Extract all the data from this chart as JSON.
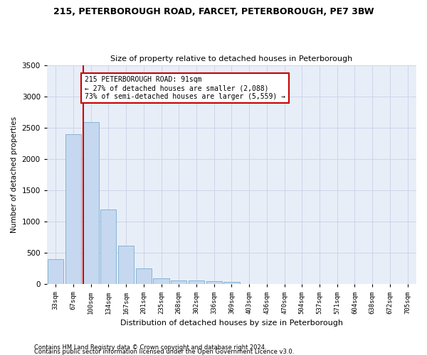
{
  "title_line1": "215, PETERBOROUGH ROAD, FARCET, PETERBOROUGH, PE7 3BW",
  "title_line2": "Size of property relative to detached houses in Peterborough",
  "xlabel": "Distribution of detached houses by size in Peterborough",
  "ylabel": "Number of detached properties",
  "footnote1": "Contains HM Land Registry data © Crown copyright and database right 2024.",
  "footnote2": "Contains public sector information licensed under the Open Government Licence v3.0.",
  "bar_labels": [
    "33sqm",
    "67sqm",
    "100sqm",
    "134sqm",
    "167sqm",
    "201sqm",
    "235sqm",
    "268sqm",
    "302sqm",
    "336sqm",
    "369sqm",
    "403sqm",
    "436sqm",
    "470sqm",
    "504sqm",
    "537sqm",
    "571sqm",
    "604sqm",
    "638sqm",
    "672sqm",
    "705sqm"
  ],
  "bar_values": [
    400,
    2390,
    2590,
    1200,
    620,
    250,
    100,
    65,
    58,
    50,
    40,
    0,
    0,
    0,
    0,
    0,
    0,
    0,
    0,
    0,
    0
  ],
  "bar_color": "#c5d8f0",
  "bar_edge_color": "#7aadce",
  "red_line_bar_index": 2,
  "annotation_text": "215 PETERBOROUGH ROAD: 91sqm\n← 27% of detached houses are smaller (2,088)\n73% of semi-detached houses are larger (5,559) →",
  "annotation_box_color": "#ffffff",
  "annotation_box_edge": "#cc0000",
  "red_line_color": "#cc0000",
  "grid_color": "#ccd5e8",
  "background_color": "#e8eef8",
  "ylim": [
    0,
    3500
  ],
  "yticks": [
    0,
    500,
    1000,
    1500,
    2000,
    2500,
    3000,
    3500
  ]
}
